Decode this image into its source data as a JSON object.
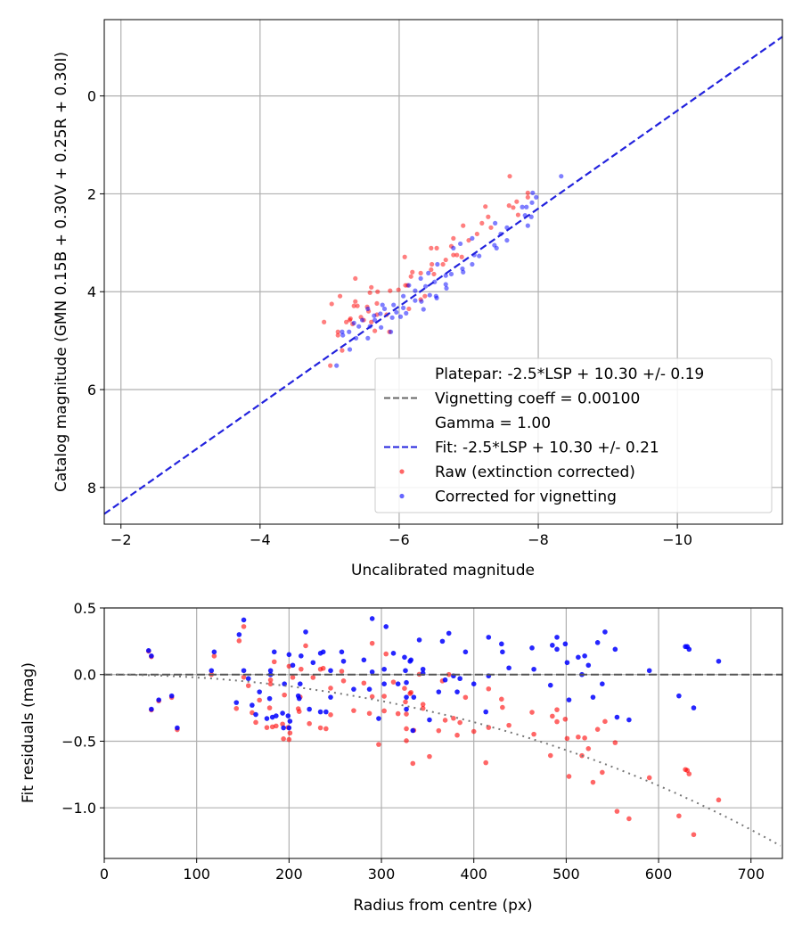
{
  "colors": {
    "raw": "#ff0000",
    "corrected": "#0000ff",
    "fit": "#2222dd",
    "vignetting": "#666666",
    "grid": "#b0b0b0"
  },
  "chart_data": [
    {
      "type": "scatter",
      "title": "",
      "xlabel": "Uncalibrated magnitude",
      "ylabel": "Catalog magnitude (GMN 0.15B + 0.30V + 0.25R + 0.30I)",
      "xlim": [
        -1.76,
        -11.51
      ],
      "ylim": [
        8.75,
        -1.56
      ],
      "xticks": [
        -2,
        -4,
        -6,
        -8,
        -10
      ],
      "xtick_labels": [
        "−2",
        "−4",
        "−6",
        "−8",
        "−10"
      ],
      "yticks": [
        0,
        2,
        4,
        6,
        8
      ],
      "ytick_labels": [
        "0",
        "2",
        "4",
        "6",
        "8"
      ],
      "grid": true,
      "legend_position": "lower-right",
      "legend": [
        {
          "label": "Platepar: -2.5*LSP + 10.30 +/- 0.19",
          "style": "none"
        },
        {
          "label": "Vignetting coeff = 0.00100",
          "style": "dashed-gray"
        },
        {
          "label": "Gamma = 1.00",
          "style": "none"
        },
        {
          "label": "Fit: -2.5*LSP + 10.30 +/- 0.21",
          "style": "dashed-blue"
        },
        {
          "label": "Raw (extinction corrected)",
          "style": "red-dot"
        },
        {
          "label": "Corrected for vignetting",
          "style": "blue-dot"
        }
      ],
      "fit_line": {
        "slope": 1.0,
        "intercept": 10.3
      },
      "series": [
        {
          "name": "Raw (extinction corrected)",
          "color": "#ff0000",
          "points": [
            [
              -7.59,
              1.64
            ],
            [
              -7.85,
              1.98
            ],
            [
              -7.85,
              2.07
            ],
            [
              -7.69,
              2.16
            ],
            [
              -7.58,
              2.24
            ],
            [
              -7.64,
              2.28
            ],
            [
              -7.71,
              2.43
            ],
            [
              -7.24,
              2.26
            ],
            [
              -7.28,
              2.47
            ],
            [
              -7.19,
              2.6
            ],
            [
              -7.32,
              2.69
            ],
            [
              -6.92,
              2.65
            ],
            [
              -7.12,
              2.82
            ],
            [
              -6.78,
              2.91
            ],
            [
              -7.0,
              2.95
            ],
            [
              -6.75,
              3.07
            ],
            [
              -6.46,
              3.11
            ],
            [
              -6.54,
              3.11
            ],
            [
              -6.78,
              3.25
            ],
            [
              -6.83,
              3.25
            ],
            [
              -6.9,
              3.29
            ],
            [
              -6.63,
              3.44
            ],
            [
              -6.47,
              3.44
            ],
            [
              -6.67,
              3.35
            ],
            [
              -6.08,
              3.29
            ],
            [
              -6.46,
              3.55
            ],
            [
              -6.19,
              3.6
            ],
            [
              -6.31,
              3.62
            ],
            [
              -6.17,
              3.69
            ],
            [
              -6.5,
              3.64
            ],
            [
              -5.37,
              3.73
            ],
            [
              -6.09,
              3.87
            ],
            [
              -6.12,
              3.87
            ],
            [
              -5.6,
              3.91
            ],
            [
              -5.87,
              3.98
            ],
            [
              -5.99,
              3.96
            ],
            [
              -5.69,
              4.0
            ],
            [
              -5.58,
              4.02
            ],
            [
              -5.15,
              4.09
            ],
            [
              -5.37,
              4.2
            ],
            [
              -5.03,
              4.25
            ],
            [
              -5.68,
              4.24
            ],
            [
              -5.54,
              4.31
            ],
            [
              -5.35,
              4.29
            ],
            [
              -5.4,
              4.29
            ],
            [
              -5.56,
              4.4
            ],
            [
              -6.14,
              4.35
            ],
            [
              -6.31,
              4.16
            ],
            [
              -6.37,
              4.09
            ],
            [
              -4.92,
              4.62
            ],
            [
              -5.24,
              4.62
            ],
            [
              -5.29,
              4.58
            ],
            [
              -5.49,
              4.58
            ],
            [
              -5.12,
              4.82
            ],
            [
              -5.12,
              4.89
            ],
            [
              -5.18,
              5.2
            ],
            [
              -5.65,
              4.8
            ],
            [
              -5.86,
              4.82
            ],
            [
              -5.01,
              5.51
            ],
            [
              -5.68,
              4.47
            ],
            [
              -5.82,
              4.47
            ],
            [
              -5.3,
              4.55
            ],
            [
              -5.45,
              4.52
            ],
            [
              -5.33,
              4.66
            ],
            [
              -5.6,
              4.62
            ]
          ]
        },
        {
          "name": "Corrected for vignetting",
          "color": "#0000ff",
          "points": [
            [
              -8.33,
              1.64
            ],
            [
              -7.92,
              1.98
            ],
            [
              -7.97,
              2.07
            ],
            [
              -7.91,
              2.18
            ],
            [
              -7.83,
              2.27
            ],
            [
              -7.77,
              2.27
            ],
            [
              -7.81,
              2.44
            ],
            [
              -7.9,
              2.47
            ],
            [
              -7.85,
              2.65
            ],
            [
              -7.38,
              2.6
            ],
            [
              -7.55,
              2.69
            ],
            [
              -7.46,
              2.82
            ],
            [
              -7.55,
              2.95
            ],
            [
              -7.37,
              3.05
            ],
            [
              -7.4,
              3.11
            ],
            [
              -7.05,
              2.91
            ],
            [
              -6.88,
              3.02
            ],
            [
              -6.78,
              3.11
            ],
            [
              -7.08,
              3.25
            ],
            [
              -7.15,
              3.27
            ],
            [
              -7.05,
              3.44
            ],
            [
              -6.91,
              3.53
            ],
            [
              -6.92,
              3.6
            ],
            [
              -6.55,
              3.44
            ],
            [
              -6.75,
              3.64
            ],
            [
              -6.67,
              3.67
            ],
            [
              -6.42,
              3.62
            ],
            [
              -6.31,
              3.73
            ],
            [
              -6.51,
              3.8
            ],
            [
              -6.67,
              3.85
            ],
            [
              -6.68,
              3.93
            ],
            [
              -6.38,
              3.89
            ],
            [
              -6.14,
              3.87
            ],
            [
              -6.23,
              3.98
            ],
            [
              -6.44,
              4.07
            ],
            [
              -6.53,
              4.09
            ],
            [
              -6.54,
              4.13
            ],
            [
              -6.32,
              4.2
            ],
            [
              -6.35,
              4.36
            ],
            [
              -6.23,
              4.18
            ],
            [
              -6.06,
              4.09
            ],
            [
              -6.06,
              4.33
            ],
            [
              -6.1,
              4.44
            ],
            [
              -6.02,
              4.51
            ],
            [
              -5.92,
              4.27
            ],
            [
              -5.79,
              4.35
            ],
            [
              -5.76,
              4.27
            ],
            [
              -5.73,
              4.45
            ],
            [
              -5.64,
              4.49
            ],
            [
              -5.55,
              4.35
            ],
            [
              -5.65,
              4.58
            ],
            [
              -5.47,
              4.58
            ],
            [
              -5.35,
              4.64
            ],
            [
              -5.42,
              4.71
            ],
            [
              -5.58,
              4.71
            ],
            [
              -5.74,
              4.73
            ],
            [
              -5.88,
              4.82
            ],
            [
              -5.28,
              4.82
            ],
            [
              -5.18,
              4.82
            ],
            [
              -5.19,
              4.89
            ],
            [
              -5.38,
              4.95
            ],
            [
              -5.55,
              4.95
            ],
            [
              -5.29,
              5.18
            ],
            [
              -5.1,
              5.51
            ],
            [
              -5.9,
              4.53
            ],
            [
              -5.96,
              4.42
            ]
          ]
        }
      ]
    },
    {
      "type": "scatter",
      "title": "",
      "xlabel": "Radius from centre (px)",
      "ylabel": "Fit residuals (mag)",
      "xlim": [
        0,
        734
      ],
      "ylim": [
        -1.38,
        0.5
      ],
      "xticks": [
        0,
        100,
        200,
        300,
        400,
        500,
        600,
        700
      ],
      "xtick_labels": [
        "0",
        "100",
        "200",
        "300",
        "400",
        "500",
        "600",
        "700"
      ],
      "yticks": [
        0.5,
        0.0,
        -0.5,
        -1.0
      ],
      "ytick_labels": [
        "0.5",
        "0.0",
        "−0.5",
        "−1.0"
      ],
      "grid": true,
      "zero_line": 0.0,
      "vignetting_curve": {
        "coeff": 0.001
      },
      "series": [
        {
          "name": "Corrected for vignetting",
          "color": "#0000ff",
          "points": [
            [
              48,
              0.18
            ],
            [
              51,
              0.14
            ],
            [
              51,
              -0.26
            ],
            [
              59,
              -0.19
            ],
            [
              73,
              -0.16
            ],
            [
              79,
              -0.4
            ],
            [
              119,
              0.17
            ],
            [
              116,
              0.03
            ],
            [
              146,
              0.3
            ],
            [
              151,
              0.41
            ],
            [
              151,
              0.03
            ],
            [
              156,
              -0.03
            ],
            [
              143,
              -0.21
            ],
            [
              160,
              -0.23
            ],
            [
              164,
              -0.3
            ],
            [
              168,
              -0.13
            ],
            [
              176,
              -0.33
            ],
            [
              179,
              -0.18
            ],
            [
              180,
              0.03
            ],
            [
              180,
              0.0
            ],
            [
              184,
              0.17
            ],
            [
              182,
              -0.32
            ],
            [
              186,
              -0.31
            ],
            [
              193,
              -0.29
            ],
            [
              195,
              -0.07
            ],
            [
              194,
              -0.4
            ],
            [
              199,
              -0.31
            ],
            [
              200,
              -0.4
            ],
            [
              201,
              -0.35
            ],
            [
              200,
              0.15
            ],
            [
              204,
              0.07
            ],
            [
              210,
              -0.16
            ],
            [
              211,
              -0.18
            ],
            [
              212,
              -0.07
            ],
            [
              213,
              0.14
            ],
            [
              218,
              0.32
            ],
            [
              222,
              -0.26
            ],
            [
              226,
              0.09
            ],
            [
              234,
              0.16
            ],
            [
              237,
              0.17
            ],
            [
              234,
              -0.28
            ],
            [
              240,
              -0.28
            ],
            [
              245,
              0.03
            ],
            [
              245,
              -0.17
            ],
            [
              257,
              0.17
            ],
            [
              259,
              0.1
            ],
            [
              270,
              -0.11
            ],
            [
              281,
              0.11
            ],
            [
              287,
              -0.11
            ],
            [
              290,
              0.42
            ],
            [
              290,
              0.02
            ],
            [
              297,
              -0.33
            ],
            [
              303,
              -0.07
            ],
            [
              303,
              0.04
            ],
            [
              305,
              0.36
            ],
            [
              313,
              0.16
            ],
            [
              318,
              -0.07
            ],
            [
              325,
              0.13
            ],
            [
              326,
              0.03
            ],
            [
              327,
              -0.06
            ],
            [
              331,
              0.1
            ],
            [
              332,
              0.11
            ],
            [
              327,
              -0.17
            ],
            [
              335,
              -0.17
            ],
            [
              327,
              -0.26
            ],
            [
              334,
              -0.42
            ],
            [
              341,
              0.26
            ],
            [
              345,
              0.04
            ],
            [
              345,
              0.01
            ],
            [
              352,
              -0.34
            ],
            [
              362,
              -0.13
            ],
            [
              366,
              0.25
            ],
            [
              373,
              0.31
            ],
            [
              391,
              0.17
            ],
            [
              378,
              -0.01
            ],
            [
              385,
              -0.03
            ],
            [
              369,
              -0.04
            ],
            [
              382,
              -0.13
            ],
            [
              400,
              -0.07
            ],
            [
              416,
              0.28
            ],
            [
              416,
              -0.01
            ],
            [
              413,
              -0.28
            ],
            [
              430,
              0.23
            ],
            [
              431,
              0.17
            ],
            [
              438,
              0.05
            ],
            [
              463,
              0.2
            ],
            [
              465,
              0.04
            ],
            [
              483,
              -0.08
            ],
            [
              485,
              0.22
            ],
            [
              490,
              0.28
            ],
            [
              490,
              0.19
            ],
            [
              499,
              0.23
            ],
            [
              501,
              0.09
            ],
            [
              503,
              -0.19
            ],
            [
              513,
              0.13
            ],
            [
              520,
              0.14
            ],
            [
              517,
              0.0
            ],
            [
              524,
              0.07
            ],
            [
              529,
              -0.17
            ],
            [
              534,
              0.24
            ],
            [
              539,
              -0.07
            ],
            [
              542,
              0.32
            ],
            [
              553,
              0.19
            ],
            [
              555,
              -0.32
            ],
            [
              568,
              -0.34
            ],
            [
              590,
              0.03
            ],
            [
              622,
              -0.16
            ],
            [
              629,
              0.21
            ],
            [
              631,
              0.21
            ],
            [
              633,
              0.19
            ],
            [
              638,
              -0.25
            ],
            [
              665,
              0.1
            ]
          ]
        }
      ]
    }
  ]
}
